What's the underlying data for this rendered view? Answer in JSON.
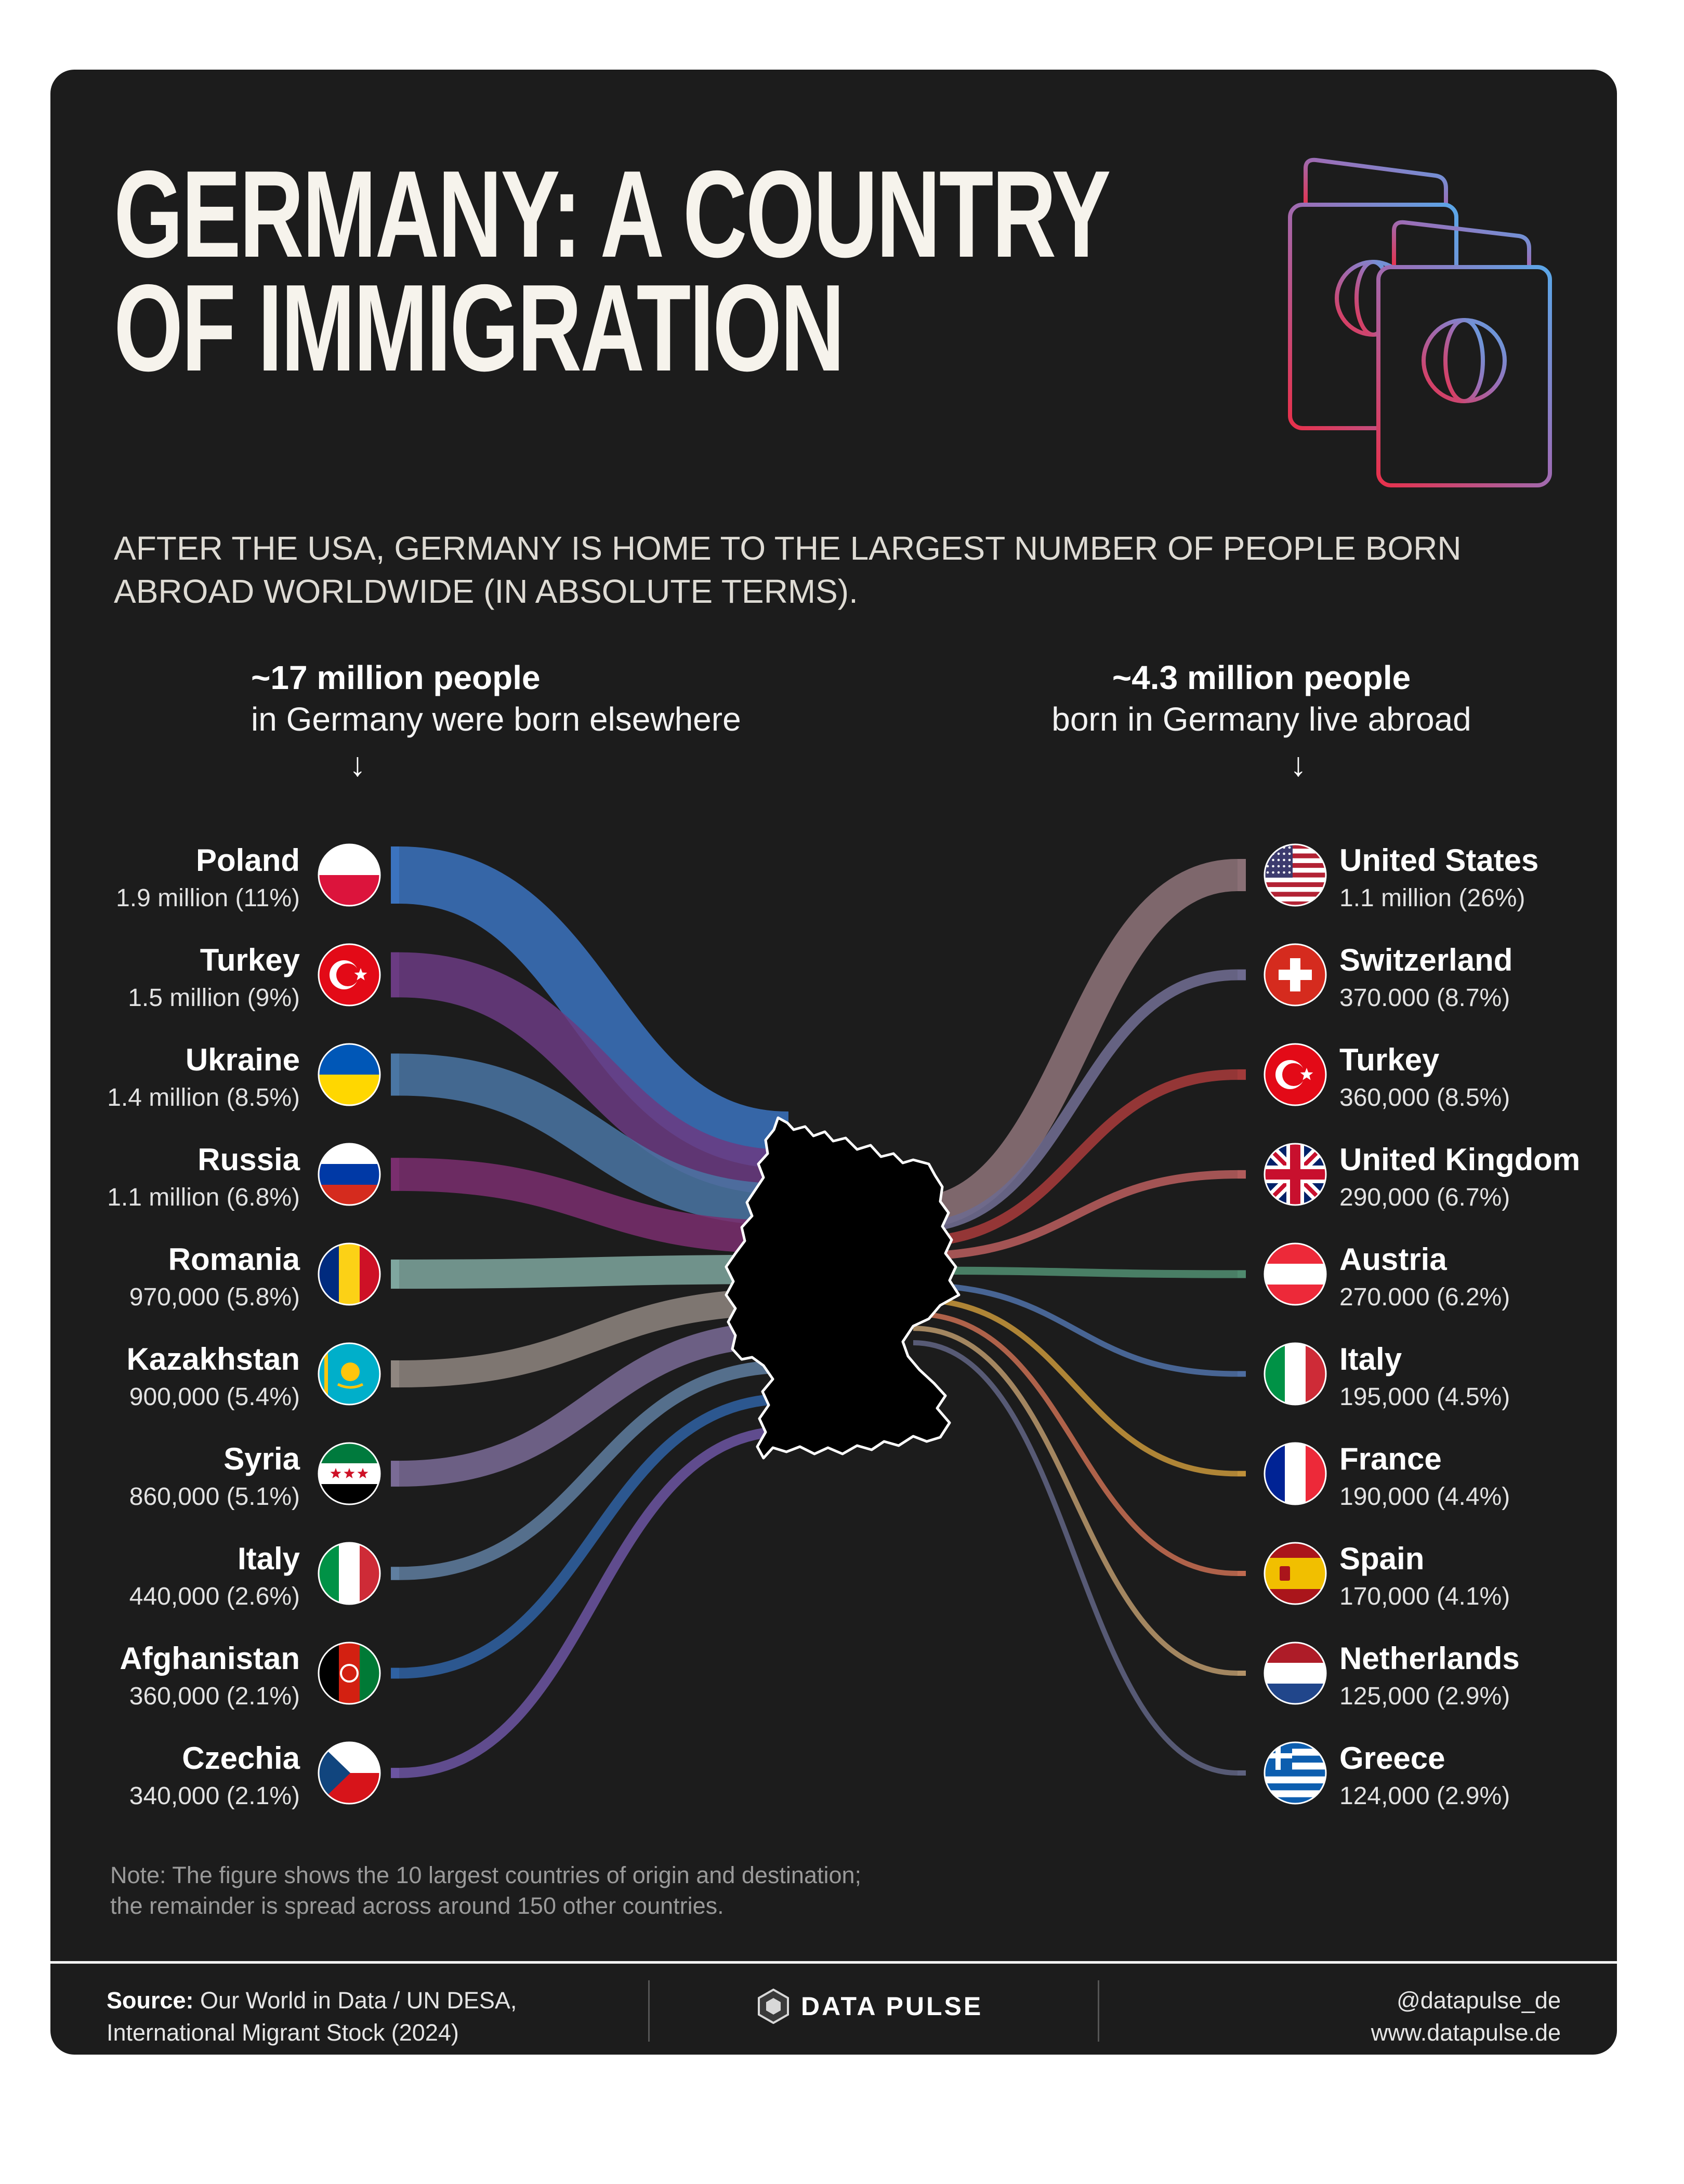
{
  "title_line1": "GERMANY: A COUNTRY",
  "title_line2": "OF IMMIGRATION",
  "subtitle": "AFTER THE USA, GERMANY IS HOME TO THE LARGEST NUMBER OF PEOPLE BORN ABROAD WORLDWIDE (IN ABSOLUTE TERMS).",
  "left_header": {
    "bold": "~17 million people",
    "text": "in Germany were born elsewhere"
  },
  "right_header": {
    "bold": "~4.3 million people",
    "text": "born in Germany live abroad"
  },
  "arrow_glyph": "↓",
  "note_line1": "Note: The figure shows the 10 largest countries of origin and destination;",
  "note_line2": "the remainder is spread across around 150 other countries.",
  "footer": {
    "source_label": "Source:",
    "source_line1": " Our World in Data / UN DESA,",
    "source_line2": "International Migrant Stock (2024)",
    "logo_text": "DATA PULSE",
    "social": "@datapulse_de",
    "website": "www.datapulse.de"
  },
  "colors": {
    "background": "#1c1c1c",
    "germany_fill": "#000000",
    "germany_outline": "#ffffff",
    "icon_gradient": [
      "#e8304a",
      "#5aa7e8"
    ]
  },
  "icons": {
    "header": "passports-icon",
    "logo": "datapulse-hexagon-icon",
    "arrows": "arrow-down-icon"
  },
  "chart_data": {
    "type": "sankey",
    "center": "Germany",
    "inflows_title": "~17 million people in Germany were born elsewhere",
    "outflows_title": "~4.3 million people born in Germany live abroad",
    "inflows": [
      {
        "country": "Poland",
        "label": "1.9 million (11%)",
        "value": 1900000,
        "share": 11,
        "color": "#3b73bf",
        "flag": "poland"
      },
      {
        "country": "Turkey",
        "label": "1.5 million (9%)",
        "value": 1500000,
        "share": 9,
        "color": "#6b3b82",
        "flag": "turkey"
      },
      {
        "country": "Ukraine",
        "label": "1.4 million (8.5%)",
        "value": 1400000,
        "share": 8.5,
        "color": "#4a76a4",
        "flag": "ukraine"
      },
      {
        "country": "Russia",
        "label": "1.1 million (6.8%)",
        "value": 1100000,
        "share": 6.8,
        "color": "#7a2e6e",
        "flag": "russia"
      },
      {
        "country": "Romania",
        "label": "970,000 (5.8%)",
        "value": 970000,
        "share": 5.8,
        "color": "#7fa79f",
        "flag": "romania"
      },
      {
        "country": "Kazakhstan",
        "label": "900,000 (5.4%)",
        "value": 900000,
        "share": 5.4,
        "color": "#8f8680",
        "flag": "kazakhstan"
      },
      {
        "country": "Syria",
        "label": "860,000 (5.1%)",
        "value": 860000,
        "share": 5.1,
        "color": "#7a6b96",
        "flag": "syria"
      },
      {
        "country": "Italy",
        "label": "440,000 (2.6%)",
        "value": 440000,
        "share": 2.6,
        "color": "#5f7ea0",
        "flag": "italy"
      },
      {
        "country": "Afghanistan",
        "label": "360,000 (2.1%)",
        "value": 360000,
        "share": 2.1,
        "color": "#2f62a3",
        "flag": "afghanistan"
      },
      {
        "country": "Czechia",
        "label": "340,000 (2.1%)",
        "value": 340000,
        "share": 2.1,
        "color": "#6c55a2",
        "flag": "czechia"
      }
    ],
    "outflows": [
      {
        "country": "United States",
        "label": "1.1 million (26%)",
        "value": 1100000,
        "share": 26,
        "color": "#8a7076",
        "flag": "usa"
      },
      {
        "country": "Switzerland",
        "label": "370.000 (8.7%)",
        "value": 370000,
        "share": 8.7,
        "color": "#6e6a8e",
        "flag": "switzerland"
      },
      {
        "country": "Turkey",
        "label": "360,000 (8.5%)",
        "value": 360000,
        "share": 8.5,
        "color": "#a23a3a",
        "flag": "turkey"
      },
      {
        "country": "United Kingdom",
        "label": "290,000 (6.7%)",
        "value": 290000,
        "share": 6.7,
        "color": "#b25b5b",
        "flag": "uk"
      },
      {
        "country": "Austria",
        "label": "270.000 (6.2%)",
        "value": 270000,
        "share": 6.2,
        "color": "#4f8a6e",
        "flag": "austria"
      },
      {
        "country": "Italy",
        "label": "195,000 (4.5%)",
        "value": 195000,
        "share": 4.5,
        "color": "#4e6ea2",
        "flag": "italy"
      },
      {
        "country": "France",
        "label": "190,000 (4.4%)",
        "value": 190000,
        "share": 4.4,
        "color": "#c0913a",
        "flag": "france"
      },
      {
        "country": "Spain",
        "label": "170,000 (4.1%)",
        "value": 170000,
        "share": 4.1,
        "color": "#c06a50",
        "flag": "spain"
      },
      {
        "country": "Netherlands",
        "label": "125,000 (2.9%)",
        "value": 125000,
        "share": 2.9,
        "color": "#b39268",
        "flag": "netherlands"
      },
      {
        "country": "Greece",
        "label": "124,000 (2.9%)",
        "value": 124000,
        "share": 2.9,
        "color": "#5e6280",
        "flag": "greece"
      }
    ]
  }
}
